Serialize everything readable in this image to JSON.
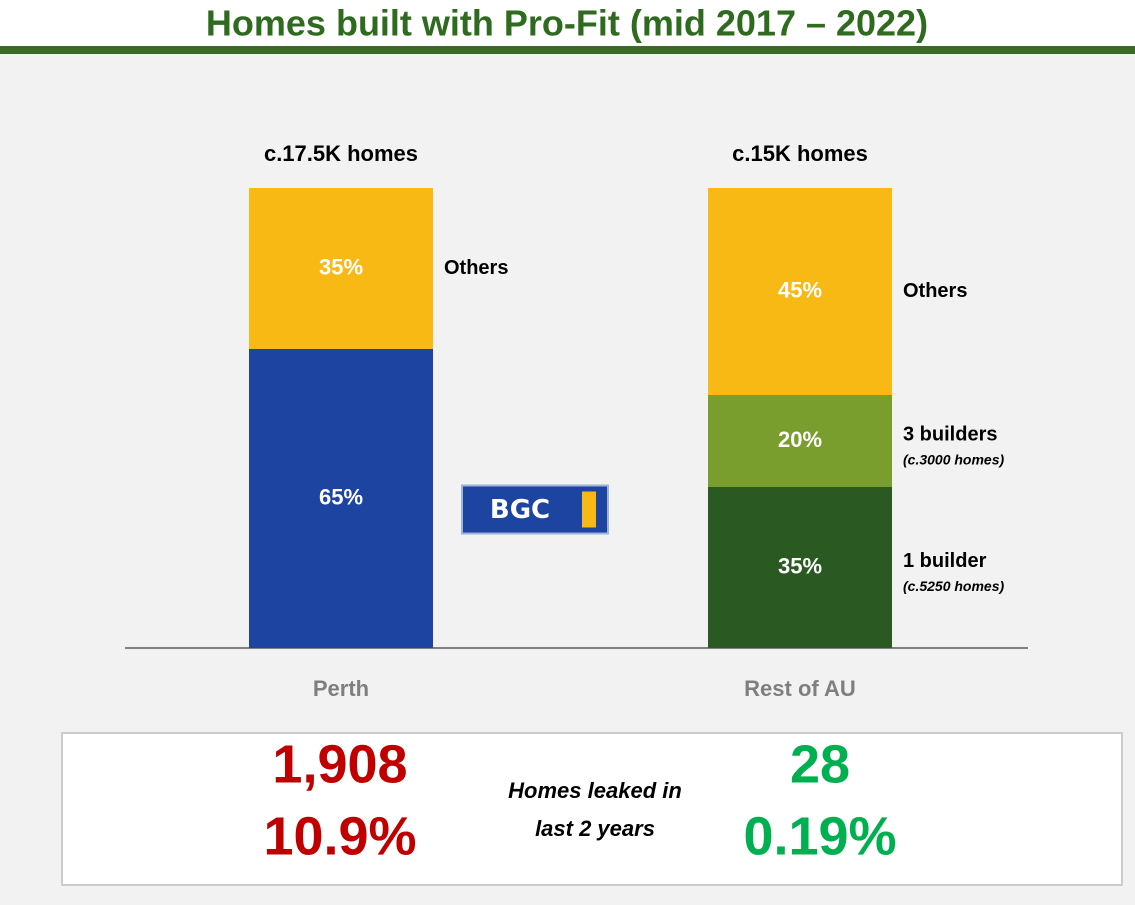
{
  "chart_data": {
    "type": "bar",
    "stacked": true,
    "title": "Homes built with Pro-Fit (mid 2017 – 2022)",
    "categories": [
      "Perth",
      "Rest of AU"
    ],
    "total_labels": [
      "c.17.5K homes",
      "c.15K homes"
    ],
    "ylim": [
      0,
      100
    ],
    "series": [
      {
        "name": "BGC",
        "color": "#1c44a0",
        "values": [
          65,
          null
        ],
        "value_labels": [
          "65%",
          null
        ],
        "logo": true
      },
      {
        "name": "1 builder",
        "note": "(c.5250 homes)",
        "color": "#2a5a22",
        "values": [
          null,
          35
        ],
        "value_labels": [
          null,
          "35%"
        ]
      },
      {
        "name": "3 builders",
        "note": "(c.3000 homes)",
        "color": "#7a9e2e",
        "values": [
          null,
          20
        ],
        "value_labels": [
          null,
          "20%"
        ]
      },
      {
        "name": "Others",
        "color": "#f9b914",
        "values": [
          35,
          45
        ],
        "value_labels": [
          "35%",
          "45%"
        ]
      }
    ]
  },
  "summary": {
    "left": [
      "1,908",
      "10.9%"
    ],
    "caption": [
      "Homes leaked in",
      "last 2 years"
    ],
    "right": [
      "28",
      "0.19%"
    ]
  }
}
